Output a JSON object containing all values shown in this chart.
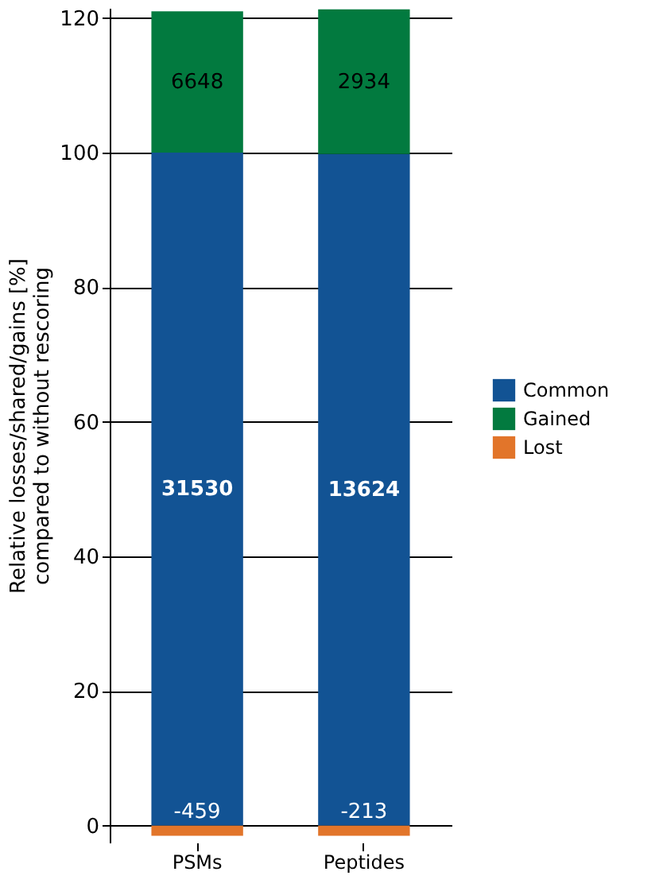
{
  "chart_data": {
    "type": "bar",
    "stacked": true,
    "categories": [
      "PSMs",
      "Peptides"
    ],
    "ylabel": "Relative losses/shared/gains [%]\ncompared to without rescoring",
    "series": [
      {
        "name": "Common",
        "color": "#125394",
        "values": [
          100,
          99.8
        ]
      },
      {
        "name": "Gained",
        "color": "#027a3f",
        "values": [
          21,
          21.5
        ]
      },
      {
        "name": "Lost",
        "color": "#e2752a",
        "values": [
          -1.5,
          -1.5
        ]
      }
    ],
    "annotations": [
      "31530",
      "13624",
      "6648",
      "2934",
      "-459",
      "-213"
    ],
    "ylim": [
      -2.5,
      121.5
    ],
    "yticks": [
      0,
      20,
      40,
      60,
      80,
      100,
      120
    ],
    "grid": "y",
    "legend": "right"
  }
}
